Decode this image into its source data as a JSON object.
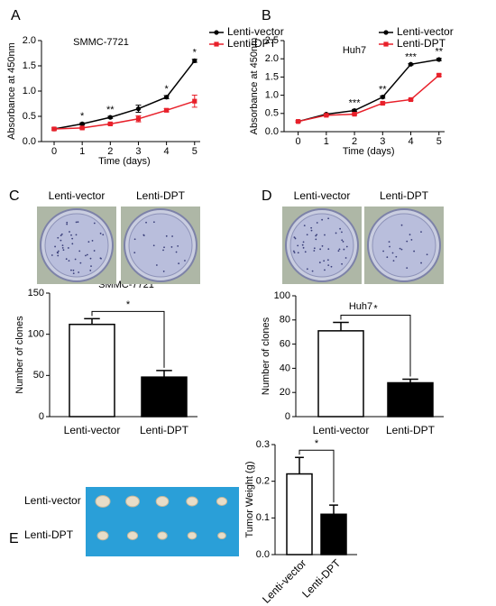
{
  "chart_data": [
    {
      "type": "line",
      "panel": "A",
      "title": "SMMC-7721",
      "x_label": "Time (days)",
      "y_label": "Absorbance at 450nm",
      "x": [
        0,
        1,
        2,
        3,
        4,
        5
      ],
      "xlim": [
        -0.45,
        5.2
      ],
      "xticks": [
        0,
        1,
        2,
        3,
        4,
        5
      ],
      "ylim": [
        0,
        2
      ],
      "yticks": [
        {
          "value": 0,
          "label": "0.0"
        },
        0.5,
        {
          "value": 1,
          "label": "1.0"
        },
        1.5,
        {
          "value": 2,
          "label": "2.0"
        }
      ],
      "series": [
        {
          "name": "Lenti-vector",
          "color": "#000000",
          "values": [
            0.25,
            0.35,
            0.48,
            0.65,
            0.88,
            1.6
          ],
          "errors": [
            0.02,
            0.02,
            0.02,
            0.07,
            0.03,
            0.03
          ]
        },
        {
          "name": "Lenti-DPT",
          "color": "#e8202a",
          "values": [
            0.25,
            0.27,
            0.35,
            0.45,
            0.62,
            0.8
          ],
          "errors": [
            0.02,
            0.02,
            0.02,
            0.06,
            0.03,
            0.12
          ]
        }
      ],
      "annotations": [
        {
          "x": 1,
          "text": "*"
        },
        {
          "x": 2,
          "text": "**"
        },
        {
          "x": 4,
          "text": "*"
        },
        {
          "x": 5,
          "text": "*"
        }
      ],
      "legend": "upper right"
    },
    {
      "type": "line",
      "panel": "B",
      "title": "Huh7",
      "x_label": "Time (days)",
      "y_label": "Absorbance at 450nm",
      "x": [
        0,
        1,
        2,
        3,
        4,
        5
      ],
      "xlim": [
        -0.5,
        5.2
      ],
      "xticks": [
        0,
        1,
        2,
        3,
        4,
        5
      ],
      "ylim": [
        0,
        2.5
      ],
      "yticks": [
        {
          "value": 0,
          "label": "0.0"
        },
        0.5,
        {
          "value": 1,
          "label": "1.0"
        },
        1.5,
        {
          "value": 2,
          "label": "2.0"
        },
        2.5
      ],
      "series": [
        {
          "name": "Lenti-vector",
          "color": "#000000",
          "values": [
            0.28,
            0.48,
            0.58,
            0.95,
            1.85,
            1.98
          ],
          "errors": [
            0.02,
            0.02,
            0.03,
            0.03,
            0.02,
            0.03
          ]
        },
        {
          "name": "Lenti-DPT",
          "color": "#e8202a",
          "values": [
            0.28,
            0.45,
            0.48,
            0.78,
            0.88,
            1.55
          ],
          "errors": [
            0.02,
            0.02,
            0.02,
            0.03,
            0.02,
            0.03
          ]
        }
      ],
      "annotations": [
        {
          "x": 2,
          "text": "***"
        },
        {
          "x": 3,
          "text": "**"
        },
        {
          "x": 4,
          "text": "***"
        },
        {
          "x": 5,
          "text": "**"
        }
      ],
      "legend": "upper right"
    },
    {
      "type": "bar",
      "panel": "C",
      "title": "SMMC-7721",
      "y_label": "Number of clones",
      "categories": [
        "Lenti-vector",
        "Lenti-DPT"
      ],
      "values": [
        112,
        48
      ],
      "errors": [
        7,
        8
      ],
      "colors": [
        "#ffffff",
        "#000000"
      ],
      "ylim": [
        0,
        150
      ],
      "yticks": [
        0,
        50,
        100,
        150
      ],
      "annotations": [
        {
          "text": "*"
        }
      ]
    },
    {
      "type": "bar",
      "panel": "D",
      "title": "Huh7",
      "y_label": "Number of clones",
      "categories": [
        "Lenti-vector",
        "Lenti-DPT"
      ],
      "values": [
        71,
        28
      ],
      "errors": [
        7,
        3
      ],
      "colors": [
        "#ffffff",
        "#000000"
      ],
      "ylim": [
        0,
        100
      ],
      "yticks": [
        0,
        20,
        40,
        60,
        80,
        100
      ],
      "annotations": [
        {
          "text": "*"
        }
      ]
    },
    {
      "type": "bar",
      "panel": "E",
      "y_label": "Tumor Weight (g)",
      "categories": [
        "Lenti-vector",
        "Lenti-DPT"
      ],
      "values": [
        0.22,
        0.11
      ],
      "errors": [
        0.045,
        0.025
      ],
      "colors": [
        "#ffffff",
        "#000000"
      ],
      "ylim": [
        0,
        0.3
      ],
      "yticks": [
        {
          "value": 0,
          "label": "0.0"
        },
        0.1,
        0.2,
        0.3
      ],
      "annotations": [
        {
          "text": "*"
        }
      ]
    }
  ],
  "photos": [
    {
      "labels": [
        "Lenti-vector",
        "Lenti-DPT"
      ]
    },
    {
      "labels": [
        "Lenti-vector",
        "Lenti-DPT"
      ]
    },
    {
      "labels": [
        "Lenti-vector",
        "Lenti-DPT"
      ]
    }
  ]
}
